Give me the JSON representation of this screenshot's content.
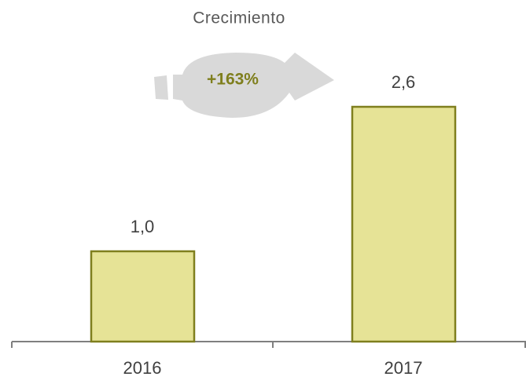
{
  "chart_data": {
    "type": "bar",
    "categories": [
      "2016",
      "2017"
    ],
    "values": [
      1.0,
      2.6
    ],
    "value_labels": [
      "1,0",
      "2,6"
    ],
    "color": "#e6e396",
    "annotations": [
      "Crecimiento",
      "+163%"
    ]
  }
}
